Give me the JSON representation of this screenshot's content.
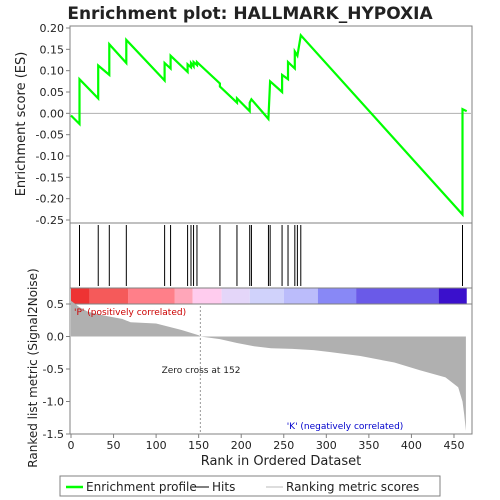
{
  "chart_data": {
    "type": "line",
    "title": "Enrichment plot: HALLMARK_HYPOXIA",
    "es_panel": {
      "ylabel": "Enrichment score (ES)",
      "ylim": [
        -0.25,
        0.2
      ],
      "yticks": [
        "0.20",
        "0.15",
        "0.10",
        "0.05",
        "0.00",
        "-0.05",
        "-0.10",
        "-0.15",
        "-0.20",
        "-0.25"
      ],
      "series": [
        {
          "name": "Enrichment profile",
          "color": "#00ff00",
          "x": [
            0,
            10,
            10,
            32,
            32,
            45,
            45,
            65,
            65,
            110,
            110,
            117,
            117,
            137,
            137,
            141,
            141,
            144,
            144,
            148,
            148,
            175,
            175,
            195,
            195,
            210,
            210,
            212,
            212,
            232,
            232,
            234,
            234,
            248,
            248,
            255,
            255,
            263,
            263,
            266,
            266,
            270,
            270,
            460,
            460,
            465
          ],
          "y": [
            -0.005,
            -0.025,
            0.08,
            0.035,
            0.112,
            0.09,
            0.162,
            0.118,
            0.172,
            0.077,
            0.118,
            0.105,
            0.135,
            0.097,
            0.115,
            0.108,
            0.118,
            0.11,
            0.12,
            0.113,
            0.12,
            0.07,
            0.063,
            0.025,
            0.035,
            0.005,
            0.025,
            0.033,
            0.033,
            -0.013,
            -0.013,
            0.075,
            0.075,
            0.05,
            0.09,
            0.08,
            0.12,
            0.105,
            0.145,
            0.135,
            0.135,
            0.183,
            0.183,
            -0.237,
            0.01,
            0.005
          ]
        }
      ]
    },
    "hits": [
      10,
      32,
      45,
      65,
      110,
      117,
      137,
      141,
      144,
      148,
      175,
      195,
      210,
      212,
      232,
      234,
      248,
      255,
      263,
      266,
      270,
      460
    ],
    "metric_panel": {
      "ylabel": "Ranked list metric (Signal2Noise)",
      "xlabel": "Rank in Ordered Dataset",
      "ylim": [
        -1.5,
        0.5
      ],
      "yticks": [
        "0.5",
        "0.0",
        "-0.5",
        "-1.0",
        "-1.5"
      ],
      "xlim": [
        0,
        470
      ],
      "xticks": [
        "0",
        "50",
        "100",
        "150",
        "200",
        "250",
        "300",
        "350",
        "400",
        "450"
      ],
      "zero_cross_label": "Zero cross at 152",
      "pos_label": "'P' (positively correlated)",
      "neg_label": "'K' (negatively correlated)",
      "metric_x": [
        0,
        10,
        20,
        40,
        60,
        70,
        100,
        130,
        150,
        152,
        175,
        195,
        215,
        235,
        260,
        285,
        305,
        340,
        380,
        410,
        440,
        455,
        460,
        462,
        464
      ],
      "metric_y": [
        0.55,
        0.45,
        0.38,
        0.32,
        0.27,
        0.22,
        0.2,
        0.1,
        0.02,
        0.0,
        -0.04,
        -0.1,
        -0.15,
        -0.18,
        -0.19,
        -0.21,
        -0.24,
        -0.3,
        -0.4,
        -0.52,
        -0.63,
        -0.78,
        -1.0,
        -1.2,
        -1.45
      ],
      "fill_color": "#b0b0b0"
    },
    "colorbar": [
      {
        "x0": 0,
        "x1": 22,
        "color": "#ee3333"
      },
      {
        "x0": 22,
        "x1": 67,
        "color": "#f55a5a"
      },
      {
        "x0": 67,
        "x1": 122,
        "color": "#ff7f89"
      },
      {
        "x0": 122,
        "x1": 143,
        "color": "#ffa6b9"
      },
      {
        "x0": 143,
        "x1": 177,
        "color": "#ffccee"
      },
      {
        "x0": 177,
        "x1": 210,
        "color": "#e4d6f9"
      },
      {
        "x0": 210,
        "x1": 250,
        "color": "#d0d2fb"
      },
      {
        "x0": 250,
        "x1": 290,
        "color": "#bbbcfb"
      },
      {
        "x0": 290,
        "x1": 335,
        "color": "#8888f6"
      },
      {
        "x0": 335,
        "x1": 432,
        "color": "#6a5ae8"
      },
      {
        "x0": 432,
        "x1": 465,
        "color": "#3a10cc"
      }
    ],
    "legend": [
      {
        "label": "Enrichment profile",
        "color": "#00ff00",
        "kind": "thick"
      },
      {
        "label": "Hits",
        "color": "#000000",
        "kind": "thin"
      },
      {
        "label": "Ranking metric scores",
        "color": "#bbbbbb",
        "kind": "thin"
      }
    ]
  }
}
